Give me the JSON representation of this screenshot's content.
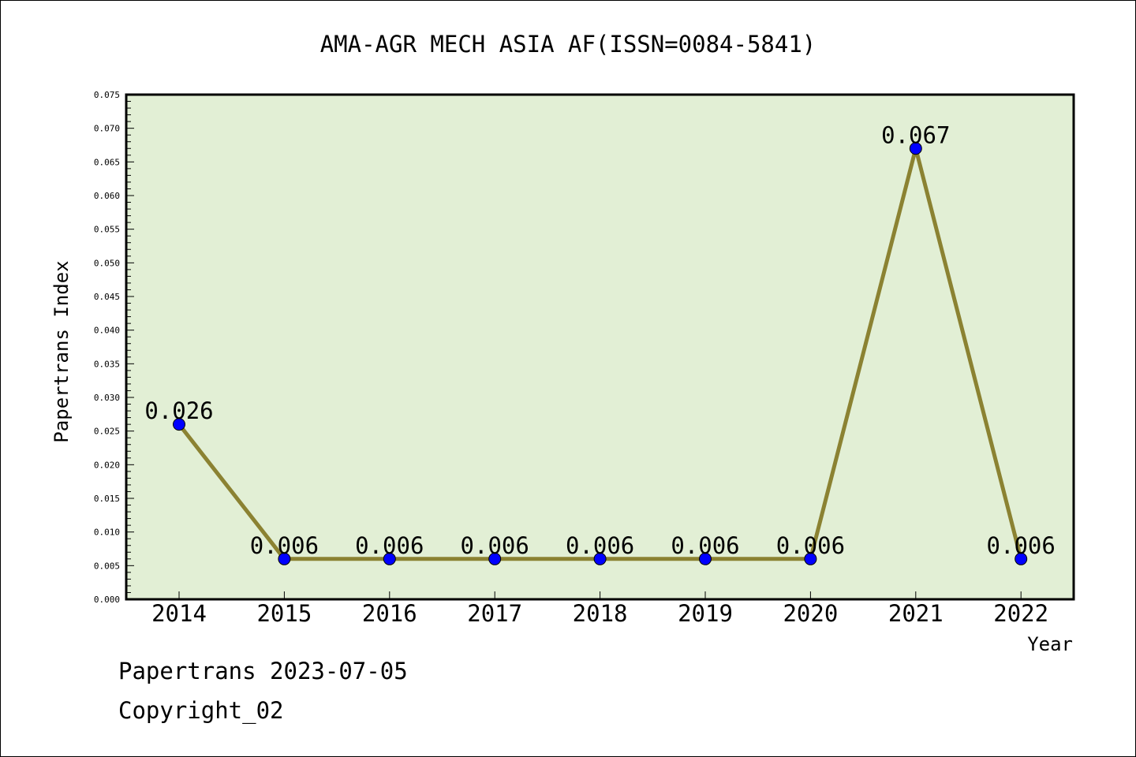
{
  "chart_data": {
    "type": "line",
    "title": "AMA-AGR MECH ASIA AF(ISSN=0084-5841)",
    "xlabel": "Year",
    "ylabel": "Papertrans Index",
    "categories": [
      "2014",
      "2015",
      "2016",
      "2017",
      "2018",
      "2019",
      "2020",
      "2021",
      "2022"
    ],
    "series": [
      {
        "values": [
          0.026,
          0.006,
          0.006,
          0.006,
          0.006,
          0.006,
          0.006,
          0.067,
          0.006
        ],
        "labels": [
          "0.026",
          "0.006",
          "0.006",
          "0.006",
          "0.006",
          "0.006",
          "0.006",
          "0.067",
          "0.006"
        ]
      }
    ],
    "ylim": [
      0,
      0.075
    ],
    "yticks": [
      "0.000",
      "0.005",
      "0.010",
      "0.015",
      "0.020",
      "0.025",
      "0.030",
      "0.035",
      "0.040",
      "0.045",
      "0.050",
      "0.055",
      "0.060",
      "0.065",
      "0.070",
      "0.075"
    ],
    "grid": false,
    "legend": "none",
    "colors": {
      "plot_background": "#e2efd5",
      "line": "#8b8232",
      "marker": "#0000ff"
    }
  },
  "footer": {
    "line1": "Papertrans 2023-07-05",
    "line2": "Copyright_02"
  }
}
